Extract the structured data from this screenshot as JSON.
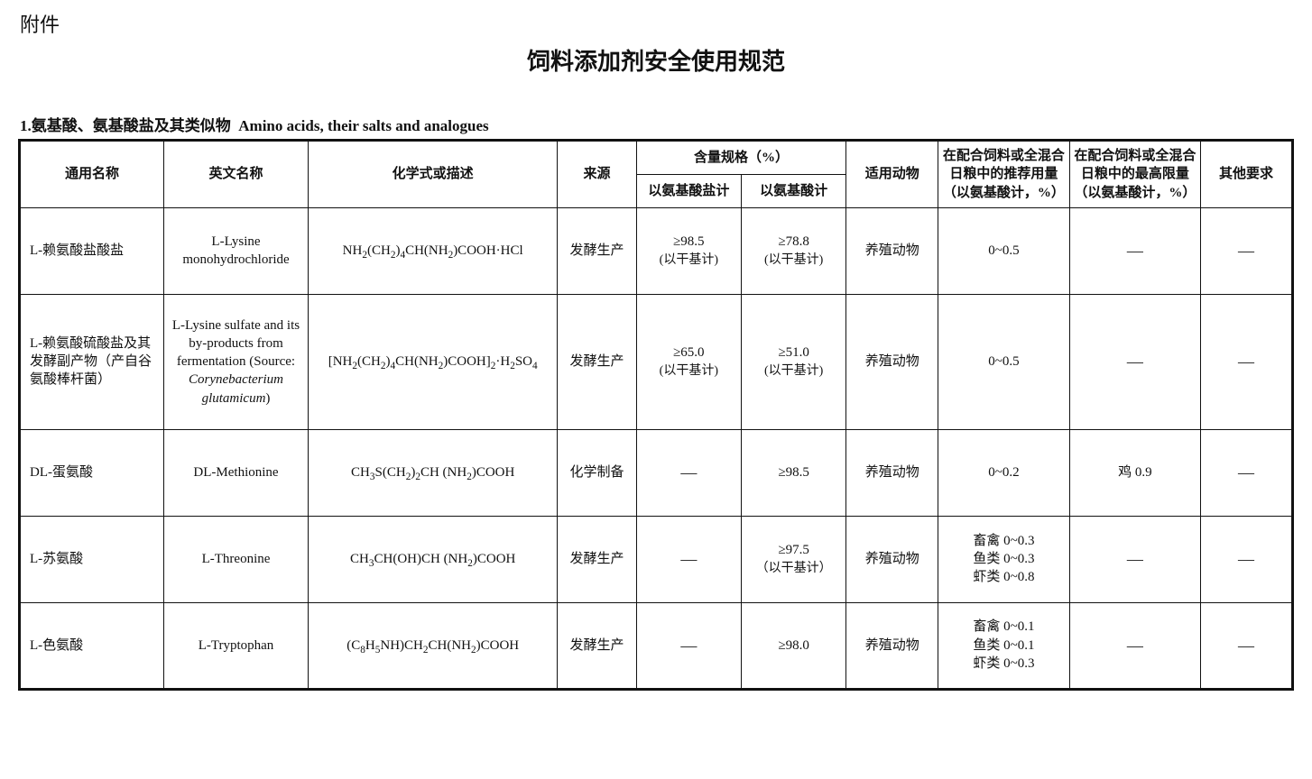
{
  "header": {
    "attachment_label": "附件",
    "main_title": "饲料添加剂安全使用规范",
    "section_number": "1.",
    "section_title_cn": "氨基酸、氨基酸盐及其类似物",
    "section_title_en": "Amino acids, their salts and analogues"
  },
  "table": {
    "columns": {
      "common_name": "通用名称",
      "english_name": "英文名称",
      "formula": "化学式或描述",
      "source": "来源",
      "content_spec": "含量规格（%）",
      "content_spec_salt": "以氨基酸盐计",
      "content_spec_acid": "以氨基酸计",
      "animals": "适用动物",
      "recommended": "在配合饲料或全混合日粮中的推荐用量（以氨基酸计，%）",
      "max_limit": "在配合饲料或全混合日粮中的最高限量（以氨基酸计，%）",
      "other": "其他要求"
    },
    "col_widths": {
      "common_name": "11%",
      "english_name": "11%",
      "formula": "19%",
      "source": "6%",
      "content_salt": "8%",
      "content_acid": "8%",
      "animals": "7%",
      "recommended": "10%",
      "max_limit": "10%",
      "other": "7%"
    },
    "dash": "—",
    "rows": [
      {
        "common_name": "L-赖氨酸盐酸盐",
        "english_name": "L-Lysine monohydrochloride",
        "formula_html": "NH<sub>2</sub>(CH<sub>2</sub>)<sub>4</sub>CH(NH<sub>2</sub>)COOH·HCl",
        "source": "发酵生产",
        "content_salt_val": "≥98.5",
        "content_salt_note": "(以干基计)",
        "content_acid_val": "≥78.8",
        "content_acid_note": "(以干基计)",
        "animals": "养殖动物",
        "recommended": "0~0.5",
        "max_limit": "—",
        "other": "—"
      },
      {
        "common_name": "L-赖氨酸硫酸盐及其发酵副产物（产自谷氨酸棒杆菌）",
        "english_name_html": "L-Lysine sulfate and its by-products from fermentation (Source: <span class=\"italic\">Corynebacterium glutamicum</span>)",
        "formula_html": "[NH<sub>2</sub>(CH<sub>2</sub>)<sub>4</sub>CH(NH<sub>2</sub>)COOH]<sub>2</sub>·H<sub>2</sub>SO<sub>4</sub>",
        "source": "发酵生产",
        "content_salt_val": "≥65.0",
        "content_salt_note": "(以干基计)",
        "content_acid_val": "≥51.0",
        "content_acid_note": "(以干基计)",
        "animals": "养殖动物",
        "recommended": "0~0.5",
        "max_limit": "—",
        "other": "—",
        "tall": true
      },
      {
        "common_name": "DL-蛋氨酸",
        "english_name": "DL-Methionine",
        "formula_html": "CH<sub>3</sub>S(CH<sub>2</sub>)<sub>2</sub>CH (NH<sub>2</sub>)COOH",
        "source": "化学制备",
        "content_salt_val": "—",
        "content_acid_val": "≥98.5",
        "animals": "养殖动物",
        "recommended": "0~0.2",
        "max_limit": "鸡  0.9",
        "other": "—"
      },
      {
        "common_name": "L-苏氨酸",
        "english_name": "L-Threonine",
        "formula_html": "CH<sub>3</sub>CH(OH)CH (NH<sub>2</sub>)COOH",
        "source": "发酵生产",
        "content_salt_val": "—",
        "content_acid_val": "≥97.5",
        "content_acid_note": "（以干基计）",
        "animals": "养殖动物",
        "recommended": "畜禽  0~0.3\n鱼类  0~0.3\n虾类  0~0.8",
        "max_limit": "—",
        "other": "—"
      },
      {
        "common_name": "L-色氨酸",
        "english_name": "L-Tryptophan",
        "formula_html": "(C<sub>8</sub>H<sub>5</sub>NH)CH<sub>2</sub>CH(NH<sub>2</sub>)COOH",
        "source": "发酵生产",
        "content_salt_val": "—",
        "content_acid_val": "≥98.0",
        "animals": "养殖动物",
        "recommended": "畜禽  0~0.1\n鱼类  0~0.1\n虾类  0~0.3",
        "max_limit": "—",
        "other": "—"
      }
    ]
  }
}
